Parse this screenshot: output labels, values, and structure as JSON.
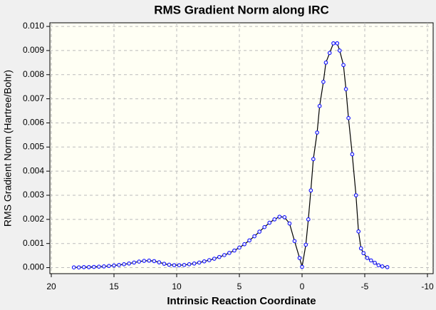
{
  "chart_data": {
    "type": "line",
    "title": "RMS Gradient Norm along IRC",
    "xlabel": "Intrinsic Reaction Coordinate",
    "ylabel": "RMS Gradient Norm (Hartree/Bohr)",
    "xlim": [
      20,
      -10
    ],
    "ylim": [
      -0.00025,
      0.01015
    ],
    "xticks": [
      20,
      15,
      10,
      5,
      0,
      -5,
      -10
    ],
    "yticks": [
      {
        "value": 0,
        "label": "0.000"
      },
      {
        "value": 0.001,
        "label": "0.001"
      },
      {
        "value": 0.002,
        "label": "0.002"
      },
      {
        "value": 0.003,
        "label": "0.003"
      },
      {
        "value": 0.004,
        "label": "0.004"
      },
      {
        "value": 0.005,
        "label": "0.005"
      },
      {
        "value": 0.006,
        "label": "0.006"
      },
      {
        "value": 0.007,
        "label": "0.007"
      },
      {
        "value": 0.008,
        "label": "0.008"
      },
      {
        "value": 0.009,
        "label": "0.009"
      },
      {
        "value": 0.01,
        "label": "0.010"
      }
    ],
    "grid": true,
    "series": [
      {
        "color": "#0000ff",
        "x": [
          18.2,
          17.8,
          17.4,
          17.0,
          16.6,
          16.2,
          15.8,
          15.4,
          15.0,
          14.6,
          14.2,
          13.8,
          13.4,
          13.0,
          12.6,
          12.2,
          11.8,
          11.4,
          11.0,
          10.6,
          10.2,
          9.8,
          9.4,
          9.0,
          8.6,
          8.2,
          7.8,
          7.4,
          7.0,
          6.6,
          6.2,
          5.8,
          5.4,
          5.0,
          4.6,
          4.2,
          3.8,
          3.4,
          3.0,
          2.6,
          2.2,
          1.8,
          1.4,
          1.0,
          0.6,
          0.2,
          0.0,
          -0.3,
          -0.5,
          -0.7,
          -0.9,
          -1.2,
          -1.4,
          -1.7,
          -1.9,
          -2.2,
          -2.5,
          -2.8,
          -3.0,
          -3.3,
          -3.5,
          -3.7,
          -4.0,
          -4.3,
          -4.5,
          -4.7,
          -4.9,
          -5.2,
          -5.5,
          -5.8,
          -6.1,
          -6.4,
          -6.8
        ],
        "values": [
          1e-05,
          1e-05,
          2e-05,
          2e-05,
          3e-05,
          4e-05,
          5e-05,
          7e-05,
          9e-05,
          0.00011,
          0.00014,
          0.00017,
          0.00021,
          0.00025,
          0.00028,
          0.00029,
          0.00027,
          0.00022,
          0.00016,
          0.00012,
          0.0001,
          0.0001,
          0.00011,
          0.00014,
          0.00017,
          0.00021,
          0.00026,
          0.00031,
          0.00037,
          0.00044,
          0.00052,
          0.00061,
          0.00071,
          0.00083,
          0.00097,
          0.00113,
          0.0013,
          0.00149,
          0.00168,
          0.00186,
          0.002,
          0.00211,
          0.00209,
          0.00183,
          0.0011,
          0.0004,
          3e-05,
          0.00095,
          0.002,
          0.0032,
          0.0045,
          0.0056,
          0.0067,
          0.0077,
          0.0085,
          0.0089,
          0.0093,
          0.0093,
          0.009,
          0.0084,
          0.0074,
          0.0062,
          0.0047,
          0.003,
          0.0015,
          0.0008,
          0.0006,
          0.0004,
          0.0003,
          0.0002,
          0.0001,
          5e-05,
          2e-05
        ]
      }
    ]
  }
}
